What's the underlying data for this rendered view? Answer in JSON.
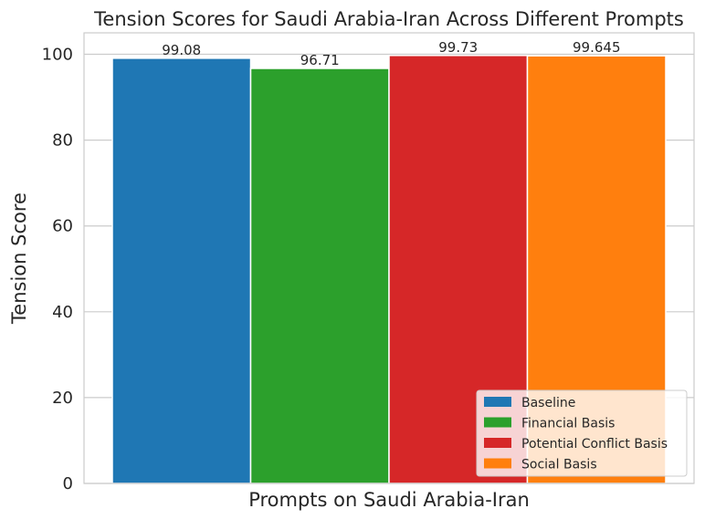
{
  "chart_data": {
    "type": "bar",
    "title": "Tension Scores for Saudi Arabia-Iran Across Different Prompts",
    "xlabel": "Prompts on Saudi Arabia-Iran",
    "ylabel": "Tension Score",
    "ylim": [
      0,
      105
    ],
    "yticks": [
      0,
      20,
      40,
      60,
      80,
      100
    ],
    "grid": true,
    "legend_position": "lower-right",
    "series": [
      {
        "name": "Baseline",
        "value": 99.08,
        "label": "99.08",
        "color": "#1f77b4"
      },
      {
        "name": "Financial Basis",
        "value": 96.71,
        "label": "96.71",
        "color": "#2ca02c"
      },
      {
        "name": "Potential Conflict Basis",
        "value": 99.73,
        "label": "99.73",
        "color": "#d62728"
      },
      {
        "name": "Social Basis",
        "value": 99.645,
        "label": "99.645",
        "color": "#ff7f0e"
      }
    ]
  }
}
